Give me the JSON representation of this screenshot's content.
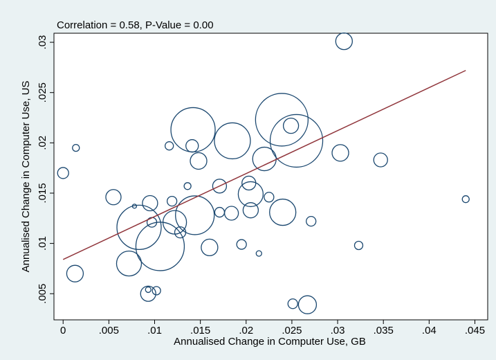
{
  "chart_data": {
    "type": "scatter",
    "title": "Correlation = 0.58, P-Value = 0.00",
    "x_label": "Annualised Change in Computer Use, GB",
    "y_label": "Annualised Change in Computer Use, US",
    "xlim": [
      -0.001,
      0.0464
    ],
    "ylim": [
      0.0024,
      0.0309
    ],
    "xticks": [
      0,
      {
        "value": 0.005,
        "label": ".005"
      },
      {
        "value": 0.01,
        "label": ".01"
      },
      {
        "value": 0.015,
        "label": ".015"
      },
      {
        "value": 0.02,
        "label": ".02"
      },
      {
        "value": 0.025,
        "label": ".025"
      },
      {
        "value": 0.03,
        "label": ".03"
      },
      {
        "value": 0.035,
        "label": ".035"
      },
      {
        "value": 0.04,
        "label": ".04"
      },
      {
        "value": 0.045,
        "label": ".045"
      }
    ],
    "yticks": [
      {
        "value": 0.005,
        "label": ".005"
      },
      {
        "value": 0.01,
        "label": ".01"
      },
      {
        "value": 0.015,
        "label": ".015"
      },
      {
        "value": 0.02,
        "label": ".02"
      },
      {
        "value": 0.025,
        "label": ".025"
      },
      {
        "value": 0.03,
        "label": ".03"
      }
    ],
    "grid": false,
    "series": [
      {
        "color": "#1a476f",
        "x": [
          0,
          0.0014,
          0.0013,
          0.0055,
          0.0078,
          0.0083,
          0.0072,
          0.0095,
          0.0097,
          0.0106,
          0.0116,
          0.0119,
          0.0122,
          0.0128,
          0.0136,
          0.0144,
          0.0142,
          0.0141,
          0.0148,
          0.016,
          0.0171,
          0.0171,
          0.0184,
          0.0185,
          0.0195,
          0.0214,
          0.0203,
          0.0205,
          0.0205,
          0.022,
          0.0225,
          0.024,
          0.0239,
          0.0255,
          0.0249,
          0.0271,
          0.0251,
          0.0267,
          0.0093,
          0.0093,
          0.0102,
          0.0303,
          0.0307,
          0.0323,
          0.0347,
          0.044
        ],
        "values": [
          0.017,
          0.0195,
          0.007,
          0.0146,
          0.0137,
          0.0116,
          0.008,
          0.014,
          0.0121,
          0.0097,
          0.0197,
          0.0142,
          0.0121,
          0.0111,
          0.0157,
          0.0128,
          0.0213,
          0.0197,
          0.0182,
          0.0096,
          0.0157,
          0.0131,
          0.013,
          0.0202,
          0.0099,
          0.009,
          0.016,
          0.0149,
          0.0133,
          0.0184,
          0.0146,
          0.0131,
          0.0223,
          0.0202,
          0.0217,
          0.0122,
          0.004,
          0.0039,
          0.005,
          0.0054,
          0.0053,
          0.019,
          0.0301,
          0.0098,
          0.0183,
          0.0144
        ],
        "sizes": [
          64,
          25,
          144,
          121,
          9,
          1024,
          324,
          121,
          49,
          1225,
          36,
          49,
          289,
          64,
          25,
          784,
          1024,
          81,
          144,
          144,
          100,
          49,
          100,
          676,
          49,
          16,
          100,
          324,
          121,
          289,
          49,
          361,
          1444,
          1444,
          121,
          49,
          49,
          169,
          121,
          16,
          36,
          144,
          144,
          36,
          100,
          25
        ]
      }
    ],
    "fit": {
      "color": "#90353b",
      "x": [
        0,
        0.044
      ],
      "values": [
        0.0084,
        0.0272
      ]
    }
  }
}
